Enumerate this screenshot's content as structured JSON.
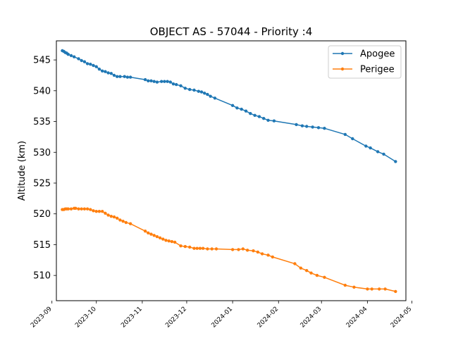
{
  "chart_data": {
    "type": "line",
    "title": "OBJECT AS - 57044 - Priority :4",
    "xlabel": "",
    "ylabel": "Altitude (km)",
    "x_ticks": [
      "2023-09",
      "2023-10",
      "2023-11",
      "2023-12",
      "2024-01",
      "2024-02",
      "2024-03",
      "2024-04",
      "2024-05"
    ],
    "y_ticks": [
      510,
      515,
      520,
      525,
      530,
      535,
      540,
      545
    ],
    "xlim": [
      "2023-09-04",
      "2024-04-27"
    ],
    "ylim": [
      505.9,
      548.1
    ],
    "legend": "top-right",
    "series": [
      {
        "name": "Apogee",
        "color": "#1f77b4",
        "points": [
          [
            "2023-09-08",
            546.5
          ],
          [
            "2023-09-09",
            546.4
          ],
          [
            "2023-09-10",
            546.2
          ],
          [
            "2023-09-11",
            546.1
          ],
          [
            "2023-09-12",
            545.9
          ],
          [
            "2023-09-14",
            545.7
          ],
          [
            "2023-09-16",
            545.5
          ],
          [
            "2023-09-19",
            545.2
          ],
          [
            "2023-09-21",
            544.9
          ],
          [
            "2023-09-23",
            544.7
          ],
          [
            "2023-09-25",
            544.4
          ],
          [
            "2023-09-27",
            544.3
          ],
          [
            "2023-09-29",
            544.1
          ],
          [
            "2023-10-01",
            543.9
          ],
          [
            "2023-10-03",
            543.5
          ],
          [
            "2023-10-05",
            543.2
          ],
          [
            "2023-10-07",
            543.1
          ],
          [
            "2023-10-09",
            542.9
          ],
          [
            "2023-10-11",
            542.8
          ],
          [
            "2023-10-13",
            542.5
          ],
          [
            "2023-10-15",
            542.3
          ],
          [
            "2023-10-17",
            542.3
          ],
          [
            "2023-10-20",
            542.3
          ],
          [
            "2023-10-22",
            542.2
          ],
          [
            "2023-10-24",
            542.2
          ],
          [
            "2023-11-03",
            541.8
          ],
          [
            "2023-11-05",
            541.6
          ],
          [
            "2023-11-07",
            541.6
          ],
          [
            "2023-11-09",
            541.5
          ],
          [
            "2023-11-11",
            541.4
          ],
          [
            "2023-11-14",
            541.5
          ],
          [
            "2023-11-16",
            541.5
          ],
          [
            "2023-11-18",
            541.5
          ],
          [
            "2023-11-20",
            541.4
          ],
          [
            "2023-11-22",
            541.1
          ],
          [
            "2023-11-24",
            541.0
          ],
          [
            "2023-11-27",
            540.8
          ],
          [
            "2023-11-30",
            540.4
          ],
          [
            "2023-12-03",
            540.2
          ],
          [
            "2023-12-06",
            540.1
          ],
          [
            "2023-12-09",
            539.9
          ],
          [
            "2023-12-11",
            539.8
          ],
          [
            "2023-12-13",
            539.6
          ],
          [
            "2023-12-15",
            539.4
          ],
          [
            "2023-12-17",
            539.1
          ],
          [
            "2023-12-20",
            538.8
          ],
          [
            "2024-01-01",
            537.6
          ],
          [
            "2024-01-04",
            537.2
          ],
          [
            "2024-01-07",
            537.0
          ],
          [
            "2024-01-10",
            536.7
          ],
          [
            "2024-01-13",
            536.3
          ],
          [
            "2024-01-16",
            536.0
          ],
          [
            "2024-01-19",
            535.8
          ],
          [
            "2024-01-22",
            535.5
          ],
          [
            "2024-01-25",
            535.2
          ],
          [
            "2024-01-29",
            535.1
          ],
          [
            "2024-02-13",
            534.5
          ],
          [
            "2024-02-17",
            534.3
          ],
          [
            "2024-02-20",
            534.2
          ],
          [
            "2024-02-24",
            534.1
          ],
          [
            "2024-02-28",
            534.0
          ],
          [
            "2024-03-03",
            533.9
          ],
          [
            "2024-03-17",
            532.9
          ],
          [
            "2024-03-22",
            532.2
          ],
          [
            "2024-03-31",
            531.0
          ],
          [
            "2024-04-03",
            530.7
          ],
          [
            "2024-04-08",
            530.1
          ],
          [
            "2024-04-12",
            529.7
          ],
          [
            "2024-04-20",
            528.5
          ]
        ]
      },
      {
        "name": "Perigee",
        "color": "#ff7f0e",
        "points": [
          [
            "2023-09-08",
            520.7
          ],
          [
            "2023-09-09",
            520.7
          ],
          [
            "2023-09-10",
            520.8
          ],
          [
            "2023-09-11",
            520.8
          ],
          [
            "2023-09-12",
            520.8
          ],
          [
            "2023-09-14",
            520.8
          ],
          [
            "2023-09-16",
            520.9
          ],
          [
            "2023-09-17",
            520.9
          ],
          [
            "2023-09-19",
            520.8
          ],
          [
            "2023-09-21",
            520.8
          ],
          [
            "2023-09-23",
            520.8
          ],
          [
            "2023-09-25",
            520.8
          ],
          [
            "2023-09-27",
            520.7
          ],
          [
            "2023-09-29",
            520.5
          ],
          [
            "2023-10-01",
            520.4
          ],
          [
            "2023-10-03",
            520.4
          ],
          [
            "2023-10-05",
            520.4
          ],
          [
            "2023-10-07",
            520.1
          ],
          [
            "2023-10-09",
            519.8
          ],
          [
            "2023-10-11",
            519.6
          ],
          [
            "2023-10-13",
            519.5
          ],
          [
            "2023-10-15",
            519.3
          ],
          [
            "2023-10-17",
            519.0
          ],
          [
            "2023-10-19",
            518.8
          ],
          [
            "2023-10-21",
            518.6
          ],
          [
            "2023-10-24",
            518.4
          ],
          [
            "2023-11-03",
            517.2
          ],
          [
            "2023-11-05",
            516.9
          ],
          [
            "2023-11-07",
            516.7
          ],
          [
            "2023-11-09",
            516.5
          ],
          [
            "2023-11-11",
            516.3
          ],
          [
            "2023-11-13",
            516.1
          ],
          [
            "2023-11-15",
            515.9
          ],
          [
            "2023-11-17",
            515.7
          ],
          [
            "2023-11-19",
            515.6
          ],
          [
            "2023-11-21",
            515.5
          ],
          [
            "2023-11-23",
            515.4
          ],
          [
            "2023-11-27",
            514.8
          ],
          [
            "2023-11-30",
            514.7
          ],
          [
            "2023-12-03",
            514.6
          ],
          [
            "2023-12-06",
            514.4
          ],
          [
            "2023-12-08",
            514.4
          ],
          [
            "2023-12-10",
            514.4
          ],
          [
            "2023-12-12",
            514.4
          ],
          [
            "2023-12-15",
            514.3
          ],
          [
            "2023-12-18",
            514.3
          ],
          [
            "2023-12-21",
            514.3
          ],
          [
            "2024-01-01",
            514.2
          ],
          [
            "2024-01-05",
            514.2
          ],
          [
            "2024-01-08",
            514.3
          ],
          [
            "2024-01-11",
            514.1
          ],
          [
            "2024-01-15",
            514.0
          ],
          [
            "2024-01-18",
            513.8
          ],
          [
            "2024-01-21",
            513.5
          ],
          [
            "2024-01-25",
            513.3
          ],
          [
            "2024-01-28",
            513.0
          ],
          [
            "2024-02-12",
            511.9
          ],
          [
            "2024-02-16",
            511.2
          ],
          [
            "2024-02-20",
            510.8
          ],
          [
            "2024-02-23",
            510.4
          ],
          [
            "2024-02-27",
            510.0
          ],
          [
            "2024-03-03",
            509.7
          ],
          [
            "2024-03-17",
            508.4
          ],
          [
            "2024-03-23",
            508.1
          ],
          [
            "2024-04-01",
            507.8
          ],
          [
            "2024-04-04",
            507.8
          ],
          [
            "2024-04-09",
            507.8
          ],
          [
            "2024-04-13",
            507.8
          ],
          [
            "2024-04-20",
            507.4
          ]
        ]
      }
    ]
  }
}
